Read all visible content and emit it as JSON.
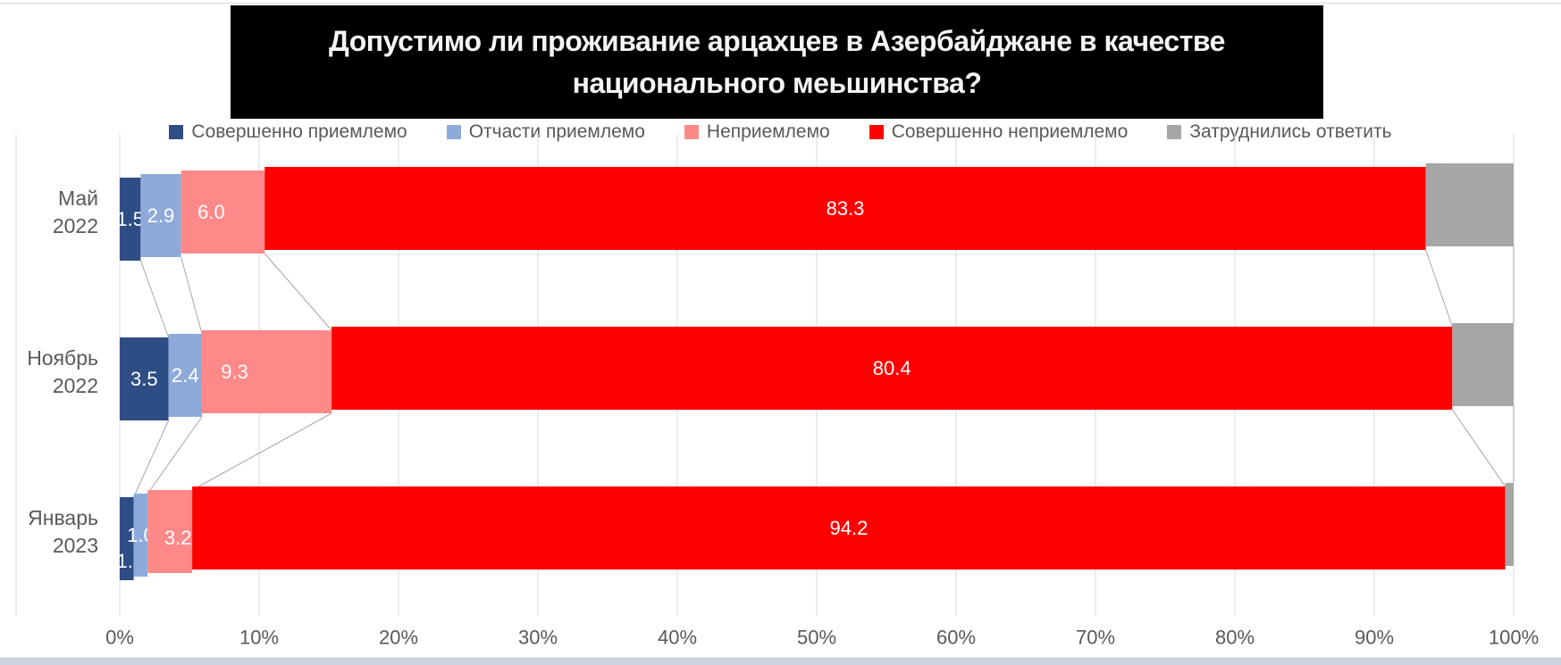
{
  "title": {
    "line1": "Допустимо ли проживание арцахцев в Азербайджане в качестве",
    "line2": "национального меьшинства?"
  },
  "chart_data": {
    "type": "bar",
    "orientation": "horizontal_stacked",
    "title": "Допустимо ли проживание арцахцев в Азербайджане в качестве национального меьшинства?",
    "categories": [
      [
        "Май",
        "2022"
      ],
      [
        "Ноябрь",
        "2022"
      ],
      [
        "Январь",
        "2023"
      ]
    ],
    "series": [
      {
        "name": "Совершенно приемлемо",
        "color": "#2E4D84",
        "values": [
          1.5,
          3.5,
          1.0
        ],
        "data_labels": true
      },
      {
        "name": "Отчасти приемлемо",
        "color": "#8EAADB",
        "values": [
          2.9,
          2.4,
          1.0
        ],
        "data_labels": true
      },
      {
        "name": "Неприемлемо",
        "color": "#FF8989",
        "values": [
          6.0,
          9.3,
          3.2
        ],
        "data_labels": true
      },
      {
        "name": "Совершенно неприемлемо",
        "color": "#FF0000",
        "values": [
          83.3,
          80.4,
          94.2
        ],
        "data_labels": true
      },
      {
        "name": "Затруднились ответить",
        "color": "#A6A6A6",
        "values": [
          6.3,
          4.4,
          0.6
        ],
        "data_labels": false
      }
    ],
    "x_axis": {
      "min": 0,
      "max": 100,
      "tick_labels": [
        "0%",
        "10%",
        "20%",
        "30%",
        "40%",
        "50%",
        "60%",
        "70%",
        "80%",
        "90%",
        "100%"
      ]
    },
    "legend_position": "top",
    "gridlines": "vertical",
    "series_connector_lines": true,
    "data_label_color": "#FFFFFF"
  },
  "colors": {
    "background": "#FFFFFF",
    "title_bg": "#000000",
    "title_text": "#F5F5F5",
    "axis_text": "#595959",
    "gridline": "#D9D9D9",
    "series_line": "#A6A6A6",
    "bottom_strip": "#CCD3DF"
  }
}
